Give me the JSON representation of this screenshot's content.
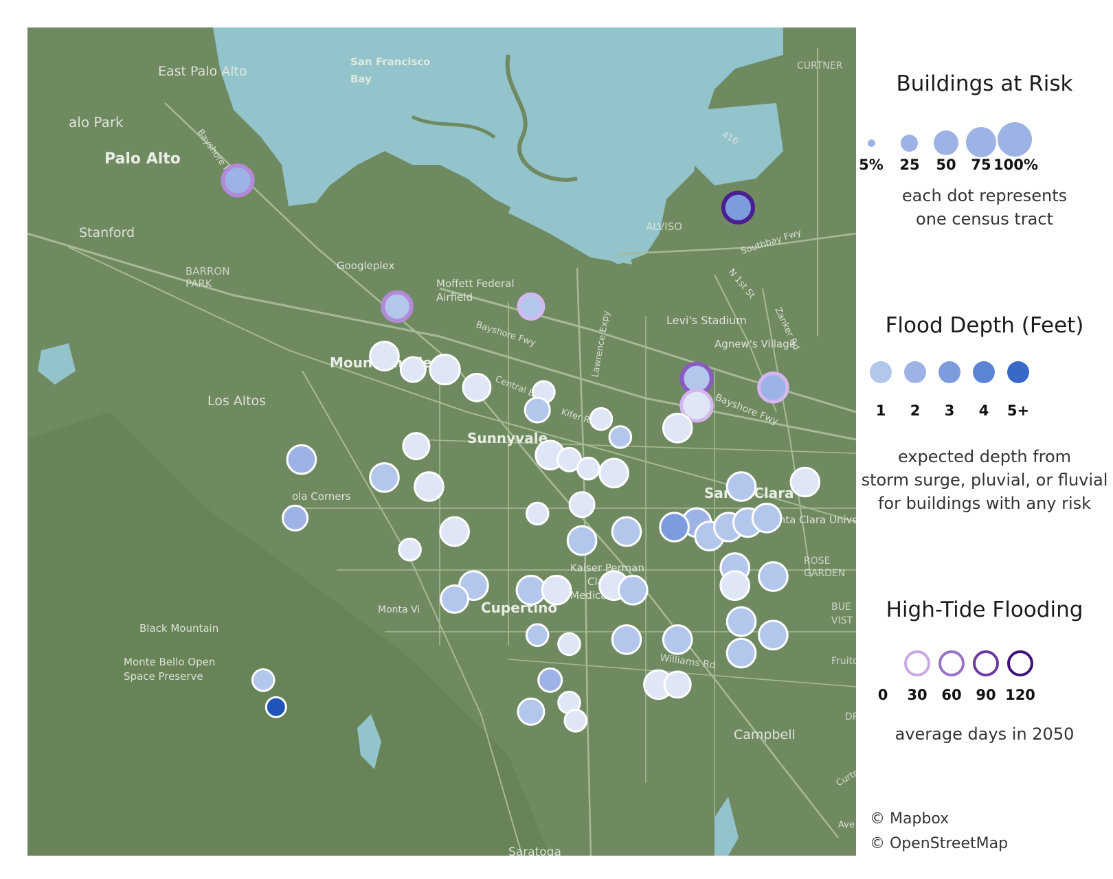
{
  "map": {
    "place_labels": [
      {
        "text": "San Francisco",
        "kind": "water"
      },
      {
        "text": "Bay",
        "kind": "water"
      },
      {
        "text": "East Palo Alto",
        "kind": "city"
      },
      {
        "text": "alo Park",
        "kind": "city"
      },
      {
        "text": "Palo Alto",
        "kind": "city-major"
      },
      {
        "text": "Stanford",
        "kind": "city"
      },
      {
        "text": "BARRON",
        "kind": "district"
      },
      {
        "text": "PARK",
        "kind": "district"
      },
      {
        "text": "Googleplex",
        "kind": "poi"
      },
      {
        "text": "Moffett Federal",
        "kind": "poi"
      },
      {
        "text": "Airfield",
        "kind": "poi"
      },
      {
        "text": "Mountain View",
        "kind": "city-major"
      },
      {
        "text": "Los Altos",
        "kind": "city"
      },
      {
        "text": "Sunnyvale",
        "kind": "city-major"
      },
      {
        "text": "Levi's Stadium",
        "kind": "poi"
      },
      {
        "text": "Agnew's Village",
        "kind": "poi"
      },
      {
        "text": "ALVISO",
        "kind": "district"
      },
      {
        "text": "CURTNER",
        "kind": "district"
      },
      {
        "text": "Santa Clara",
        "kind": "city-major"
      },
      {
        "text": "Santa Clara University",
        "kind": "poi"
      },
      {
        "text": "ROSE",
        "kind": "district"
      },
      {
        "text": "GARDEN",
        "kind": "district"
      },
      {
        "text": "Cupertino",
        "kind": "city-major"
      },
      {
        "text": "Monta Vi",
        "kind": "poi"
      },
      {
        "text": "Kaiser Perman",
        "kind": "poi"
      },
      {
        "text": "Clar",
        "kind": "poi"
      },
      {
        "text": "Medical Cen",
        "kind": "poi"
      },
      {
        "text": "ola Corners",
        "kind": "poi"
      },
      {
        "text": "Black Mountain",
        "kind": "poi"
      },
      {
        "text": "Monte Bello Open",
        "kind": "poi"
      },
      {
        "text": "Space Preserve",
        "kind": "poi"
      },
      {
        "text": "Campbell",
        "kind": "city"
      },
      {
        "text": "Saratoga",
        "kind": "city"
      },
      {
        "text": "BUE",
        "kind": "district"
      },
      {
        "text": "VIST",
        "kind": "district"
      },
      {
        "text": "Fruitd",
        "kind": "district"
      },
      {
        "text": "DR",
        "kind": "district"
      }
    ],
    "road_labels": [
      "Bayshore Fwy",
      "Bayshore Fwy",
      "Bayshore Fwy",
      "Central Expy",
      "Kifer Rd",
      "Lawrence Expy",
      "Southbay Fwy",
      "N 1st St",
      "Zanker Rd",
      "Williams Rd",
      "Curtner Av",
      "Ave",
      "416"
    ]
  },
  "tracts": [
    {
      "x": -122.0325,
      "y": 37.43,
      "share": 50,
      "depth": 4,
      "tide": 120
    },
    {
      "x": -122.111,
      "y": 37.433,
      "share": 50,
      "depth": 3,
      "tide": 60
    },
    {
      "x": -122.086,
      "y": 37.419,
      "share": 45,
      "depth": 2,
      "tide": 60
    },
    {
      "x": -122.065,
      "y": 37.419,
      "share": 30,
      "depth": 2,
      "tide": 45
    },
    {
      "x": -122.039,
      "y": 37.411,
      "share": 50,
      "depth": 2,
      "tide": 90
    },
    {
      "x": -122.027,
      "y": 37.41,
      "share": 45,
      "depth": 3,
      "tide": 40
    },
    {
      "x": -122.039,
      "y": 37.408,
      "share": 55,
      "depth": 1,
      "tide": 15
    },
    {
      "x": -122.042,
      "y": 37.4055,
      "share": 45,
      "depth": 1,
      "tide": 0
    },
    {
      "x": -122.088,
      "y": 37.4135,
      "share": 45,
      "depth": 1,
      "tide": 0
    },
    {
      "x": -122.0835,
      "y": 37.412,
      "share": 30,
      "depth": 1,
      "tide": 0
    },
    {
      "x": -122.0785,
      "y": 37.412,
      "share": 50,
      "depth": 1,
      "tide": 0
    },
    {
      "x": -122.0735,
      "y": 37.41,
      "share": 40,
      "depth": 1,
      "tide": 0
    },
    {
      "x": -122.063,
      "y": 37.4095,
      "share": 20,
      "depth": 1,
      "tide": 0
    },
    {
      "x": -122.064,
      "y": 37.4075,
      "share": 30,
      "depth": 2,
      "tide": 0
    },
    {
      "x": -122.054,
      "y": 37.4065,
      "share": 20,
      "depth": 1,
      "tide": 0
    },
    {
      "x": -122.051,
      "y": 37.4045,
      "share": 20,
      "depth": 2,
      "tide": 0
    },
    {
      "x": -122.083,
      "y": 37.4035,
      "share": 35,
      "depth": 1,
      "tide": 0
    },
    {
      "x": -122.101,
      "y": 37.402,
      "share": 45,
      "depth": 3,
      "tide": 0
    },
    {
      "x": -122.062,
      "y": 37.4025,
      "share": 45,
      "depth": 1,
      "tide": 0
    },
    {
      "x": -122.059,
      "y": 37.402,
      "share": 25,
      "depth": 1,
      "tide": 0
    },
    {
      "x": -122.056,
      "y": 37.401,
      "share": 20,
      "depth": 1,
      "tide": 0
    },
    {
      "x": -122.052,
      "y": 37.4005,
      "share": 45,
      "depth": 1,
      "tide": 0
    },
    {
      "x": -122.088,
      "y": 37.4,
      "share": 45,
      "depth": 2,
      "tide": 0
    },
    {
      "x": -122.081,
      "y": 37.399,
      "share": 45,
      "depth": 1,
      "tide": 0
    },
    {
      "x": -122.032,
      "y": 37.399,
      "share": 45,
      "depth": 2,
      "tide": 0
    },
    {
      "x": -122.022,
      "y": 37.3995,
      "share": 45,
      "depth": 1,
      "tide": 0
    },
    {
      "x": -122.102,
      "y": 37.3955,
      "share": 30,
      "depth": 3,
      "tide": 0
    },
    {
      "x": -122.064,
      "y": 37.396,
      "share": 20,
      "depth": 1,
      "tide": 0
    },
    {
      "x": -122.057,
      "y": 37.397,
      "share": 30,
      "depth": 1,
      "tide": 0
    },
    {
      "x": -122.039,
      "y": 37.395,
      "share": 45,
      "depth": 3,
      "tide": 0
    },
    {
      "x": -122.0425,
      "y": 37.3945,
      "share": 45,
      "depth": 4,
      "tide": 0
    },
    {
      "x": -122.037,
      "y": 37.3935,
      "share": 45,
      "depth": 2,
      "tide": 0
    },
    {
      "x": -122.034,
      "y": 37.3945,
      "share": 45,
      "depth": 2,
      "tide": 0
    },
    {
      "x": -122.031,
      "y": 37.395,
      "share": 45,
      "depth": 2,
      "tide": 0
    },
    {
      "x": -122.028,
      "y": 37.3955,
      "share": 45,
      "depth": 2,
      "tide": 0
    },
    {
      "x": -122.077,
      "y": 37.394,
      "share": 45,
      "depth": 1,
      "tide": 0
    },
    {
      "x": -122.057,
      "y": 37.393,
      "share": 45,
      "depth": 2,
      "tide": 0
    },
    {
      "x": -122.05,
      "y": 37.394,
      "share": 45,
      "depth": 2,
      "tide": 0
    },
    {
      "x": -122.084,
      "y": 37.392,
      "share": 20,
      "depth": 1,
      "tide": 0
    },
    {
      "x": -122.033,
      "y": 37.39,
      "share": 45,
      "depth": 2,
      "tide": 0
    },
    {
      "x": -122.027,
      "y": 37.389,
      "share": 45,
      "depth": 2,
      "tide": 0
    },
    {
      "x": -122.074,
      "y": 37.388,
      "share": 45,
      "depth": 2,
      "tide": 0
    },
    {
      "x": -122.065,
      "y": 37.3875,
      "share": 45,
      "depth": 2,
      "tide": 0
    },
    {
      "x": -122.061,
      "y": 37.3875,
      "share": 45,
      "depth": 1,
      "tide": 0
    },
    {
      "x": -122.052,
      "y": 37.388,
      "share": 45,
      "depth": 1,
      "tide": 0
    },
    {
      "x": -122.049,
      "y": 37.3875,
      "share": 45,
      "depth": 2,
      "tide": 0
    },
    {
      "x": -122.033,
      "y": 37.388,
      "share": 45,
      "depth": 1,
      "tide": 0
    },
    {
      "x": -122.077,
      "y": 37.3865,
      "share": 40,
      "depth": 2,
      "tide": 0
    },
    {
      "x": -122.064,
      "y": 37.3825,
      "share": 20,
      "depth": 2,
      "tide": 0
    },
    {
      "x": -122.059,
      "y": 37.3815,
      "share": 20,
      "depth": 1,
      "tide": 0
    },
    {
      "x": -122.05,
      "y": 37.382,
      "share": 45,
      "depth": 2,
      "tide": 0
    },
    {
      "x": -122.042,
      "y": 37.382,
      "share": 45,
      "depth": 2,
      "tide": 0
    },
    {
      "x": -122.032,
      "y": 37.384,
      "share": 45,
      "depth": 2,
      "tide": 0
    },
    {
      "x": -122.032,
      "y": 37.3805,
      "share": 45,
      "depth": 2,
      "tide": 0
    },
    {
      "x": -122.027,
      "y": 37.3825,
      "share": 45,
      "depth": 2,
      "tide": 0
    },
    {
      "x": -122.062,
      "y": 37.3775,
      "share": 25,
      "depth": 3,
      "tide": 0
    },
    {
      "x": -122.059,
      "y": 37.375,
      "share": 20,
      "depth": 1,
      "tide": 0
    },
    {
      "x": -122.045,
      "y": 37.377,
      "share": 45,
      "depth": 1,
      "tide": 0
    },
    {
      "x": -122.042,
      "y": 37.377,
      "share": 35,
      "depth": 1,
      "tide": 0
    },
    {
      "x": -122.107,
      "y": 37.3775,
      "share": 20,
      "depth": 2,
      "tide": 0
    },
    {
      "x": -122.105,
      "y": 37.3745,
      "share": 15,
      "depth": 5,
      "tide": 0
    },
    {
      "x": -122.065,
      "y": 37.374,
      "share": 35,
      "depth": 2,
      "tide": 0
    },
    {
      "x": -122.058,
      "y": 37.373,
      "share": 20,
      "depth": 1,
      "tide": 0
    }
  ],
  "legend": {
    "size": {
      "title": "Buildings at Risk",
      "labels": [
        "5%",
        "25",
        "50",
        "75",
        "100%"
      ],
      "note_lines": [
        "each dot represents",
        "one census tract"
      ]
    },
    "depth": {
      "title": "Flood Depth (Feet)",
      "labels": [
        "1",
        "2",
        "3",
        "4",
        "5+"
      ],
      "colors": [
        "#b3c6ec",
        "#9db3e6",
        "#7d9cde",
        "#5c84d4",
        "#3a68c8"
      ],
      "note_lines": [
        "expected depth from",
        "storm surge, pluvial, or fluvial",
        "for buildings with any risk"
      ]
    },
    "tide": {
      "title": "High-Tide Flooding",
      "labels": [
        "0",
        "30",
        "60",
        "90",
        "120"
      ],
      "colors": [
        "#ffffff",
        "#c9a7e4",
        "#9a70c8",
        "#6b3a9e",
        "#3f1179"
      ],
      "note": "average days in 2050"
    }
  },
  "colors": {
    "land": "#6f8a60",
    "water": "#93c3cb",
    "roads": "#a7ba97",
    "dot_depth": [
      "#dfe6f5",
      "#b3c6ec",
      "#9db3e6",
      "#7d9cde",
      "#1f55b8"
    ],
    "tide_ring": [
      "#ffffff",
      "#d6b6ee",
      "#b28ad8",
      "#8a5cc0",
      "#4a1e90"
    ]
  },
  "credits": [
    "© Mapbox",
    "© OpenStreetMap"
  ]
}
